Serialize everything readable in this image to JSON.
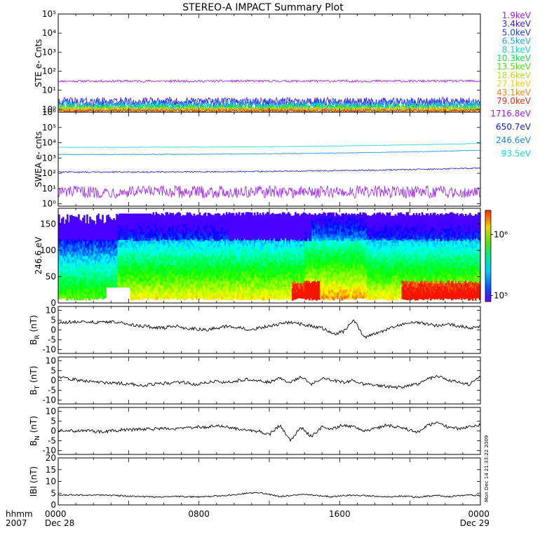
{
  "title": "STEREO-A IMPACT Summary Plot",
  "timestamp": "Mon Dec 14 21:33:22 2009",
  "time_axis": {
    "label_top": "hhmm",
    "label_bottom": "2007",
    "ticks": [
      {
        "time": "0000",
        "date": "Dec 28",
        "hours": 0
      },
      {
        "time": "0800",
        "date": "",
        "hours": 8
      },
      {
        "time": "1600",
        "date": "",
        "hours": 16
      },
      {
        "time": "0000",
        "date": "Dec 29",
        "hours": 24
      }
    ]
  },
  "chart_data": [
    {
      "type": "line",
      "ylabel": "STE e- Cnts",
      "yscale": "log",
      "ylim": [
        0.7,
        100000
      ],
      "ytick_labels": [
        "10⁰",
        "10¹",
        "10²",
        "10³",
        "10⁴",
        "10⁵"
      ],
      "ytick_values": [
        1,
        10,
        100,
        1000,
        10000,
        100000
      ],
      "series": [
        {
          "name": "1.9keV",
          "color": "#9a1aff",
          "level": 30,
          "noise": 0.06
        },
        {
          "name": "3.4keV",
          "color": "#3a18e8",
          "level": 2.4,
          "noise": 0.25
        },
        {
          "name": "5.0keV",
          "color": "#1a3cff",
          "level": 2.0,
          "noise": 0.28
        },
        {
          "name": "6.5keV",
          "color": "#1aa8e0",
          "level": 1.6,
          "noise": 0.25
        },
        {
          "name": "8.1keV",
          "color": "#10d8c8",
          "level": 1.4,
          "noise": 0.22
        },
        {
          "name": "10.3keV",
          "color": "#14e050",
          "level": 1.2,
          "noise": 0.2
        },
        {
          "name": "13.5keV",
          "color": "#52d812",
          "level": 1.1,
          "noise": 0.18
        },
        {
          "name": "18.6keV",
          "color": "#b8e012",
          "level": 1.0,
          "noise": 0.15
        },
        {
          "name": "27.1keV",
          "color": "#f0d010",
          "level": 0.95,
          "noise": 0.12
        },
        {
          "name": "43.1keV",
          "color": "#f08810",
          "level": 0.9,
          "noise": 0.1
        },
        {
          "name": "79.0keV",
          "color": "#e83010",
          "level": 0.85,
          "noise": 0.08
        }
      ]
    },
    {
      "type": "line",
      "ylabel": "SWEA e- cnts",
      "yscale": "log",
      "ylim": [
        0.7,
        1000000
      ],
      "ytick_labels": [
        "10⁰",
        "10¹",
        "10²",
        "10³",
        "10⁴",
        "10⁵",
        "10⁶"
      ],
      "ytick_values": [
        1,
        10,
        100,
        1000,
        10000,
        100000,
        1000000
      ],
      "series": [
        {
          "name": "1716.8eV",
          "color": "#9a1aff",
          "level": 6,
          "noise": 0.4
        },
        {
          "name": "650.7eV",
          "color": "#1a1acc",
          "level": 120,
          "noise": 0.04,
          "end_level": 220
        },
        {
          "name": "246.6eV",
          "color": "#1a88e0",
          "level": 1700,
          "noise": 0.02,
          "end_level": 3200
        },
        {
          "name": "93.5eV",
          "color": "#10d8d0",
          "level": 5000,
          "noise": 0.015,
          "end_level": 9000
        }
      ]
    },
    {
      "type": "heatmap",
      "ylabel": "246.6 eV",
      "ylim": [
        0,
        180
      ],
      "ytick_labels": [
        "0",
        "50",
        "100",
        "150"
      ],
      "ytick_values": [
        0,
        50,
        100,
        150
      ],
      "colorbar": {
        "scale": "log",
        "labels": [
          "10⁵",
          "10⁶"
        ],
        "values": [
          100000,
          1000000
        ],
        "range": [
          80000,
          2500000
        ]
      }
    },
    {
      "type": "line",
      "ylabel_main": "B",
      "ylabel_sub": "R",
      "ylabel_unit": "(nT)",
      "ylim": [
        -12,
        12
      ],
      "ytick_labels": [
        "-10",
        "-5",
        "0",
        "5",
        "10"
      ],
      "ytick_values": [
        -10,
        -5,
        0,
        5,
        10
      ],
      "series": [
        {
          "name": "",
          "color": "#000000",
          "values": [
            4,
            4,
            4.2,
            4,
            3.8,
            4,
            3.5,
            2.5,
            2,
            1.5,
            1,
            2,
            1,
            0.5,
            0,
            1,
            2,
            1.5,
            0,
            1,
            2,
            3,
            4,
            3,
            2,
            1,
            -2,
            -1,
            5,
            -4,
            -2,
            0,
            2,
            3,
            4,
            3,
            2,
            3,
            2,
            1,
            2
          ]
        }
      ]
    },
    {
      "type": "line",
      "ylabel_main": "B",
      "ylabel_sub": "T",
      "ylabel_unit": "(nT)",
      "ylim": [
        -12,
        12
      ],
      "ytick_labels": [
        "-10",
        "-5",
        "0",
        "5",
        "10"
      ],
      "ytick_values": [
        -10,
        -5,
        0,
        5,
        10
      ],
      "series": [
        {
          "name": "",
          "color": "#000000",
          "values": [
            1.5,
            1,
            0,
            -0.5,
            -1,
            -1.5,
            -1.5,
            -2,
            -2.5,
            -2,
            -1.5,
            -1,
            -1,
            -2,
            -1,
            -0.5,
            -1,
            0,
            0.5,
            0,
            -1,
            1,
            -1,
            2,
            -2,
            1,
            0,
            -1,
            0,
            -2,
            -2.5,
            -3,
            -3.5,
            -3,
            -2,
            1,
            2,
            0,
            -1,
            -2,
            2
          ]
        }
      ]
    },
    {
      "type": "line",
      "ylabel_main": "B",
      "ylabel_sub": "N",
      "ylabel_unit": "(nT)",
      "ylim": [
        -12,
        12
      ],
      "ytick_labels": [
        "-10",
        "-5",
        "0",
        "5",
        "10"
      ],
      "ytick_values": [
        -10,
        -5,
        0,
        5,
        10
      ],
      "series": [
        {
          "name": "",
          "color": "#000000",
          "values": [
            0,
            0,
            0,
            0,
            -0.5,
            0,
            0.5,
            0.5,
            1,
            1,
            1.5,
            1,
            1.5,
            2,
            2,
            2.5,
            2,
            1,
            0,
            0,
            -2,
            3,
            -5,
            2,
            -3,
            2,
            1,
            3,
            2,
            0,
            1,
            3,
            2,
            1,
            -1,
            3,
            4,
            2,
            1,
            2,
            3
          ]
        }
      ]
    },
    {
      "type": "line",
      "ylabel": "IBI (nT)",
      "ylim": [
        0,
        20
      ],
      "ytick_labels": [
        "0",
        "5",
        "10",
        "15",
        "20"
      ],
      "ytick_values": [
        0,
        5,
        10,
        15,
        20
      ],
      "series": [
        {
          "name": "",
          "color": "#000000",
          "values": [
            4.2,
            4.3,
            4.2,
            4.1,
            4.2,
            4.0,
            3.9,
            3.6,
            3.5,
            3.4,
            3.5,
            3.6,
            3.5,
            3.4,
            3.5,
            3.8,
            4.0,
            4.5,
            5.0,
            5.2,
            4.5,
            3.5,
            4.0,
            4.5,
            4.2,
            3.8,
            3.5,
            4.0,
            4.2,
            4.0,
            3.8,
            3.5,
            3.6,
            3.8,
            3.2,
            3.8,
            4.0,
            3.5,
            4.0,
            4.2,
            4.0
          ]
        }
      ]
    }
  ]
}
